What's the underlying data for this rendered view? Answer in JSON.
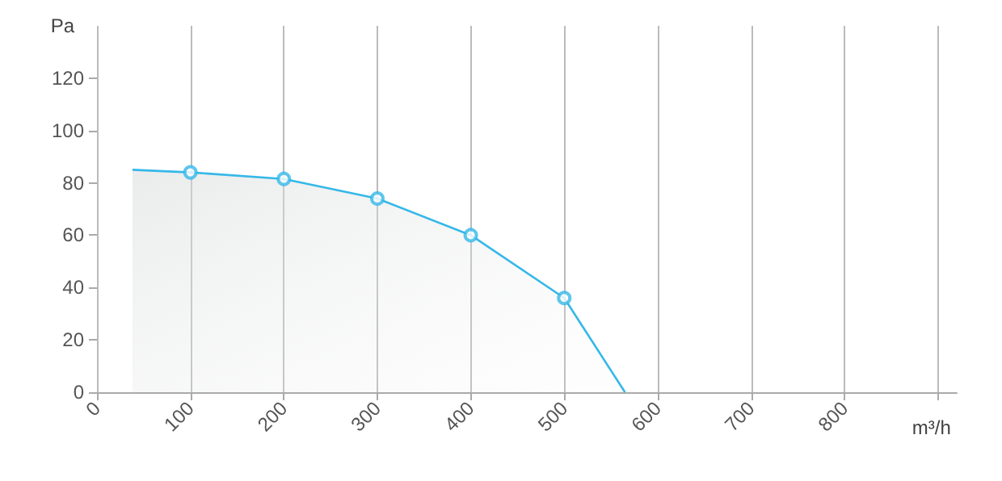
{
  "chart_data": {
    "type": "area",
    "xlabel": "m³/h",
    "ylabel": "Pa",
    "series": [
      {
        "color": "#35b8e8",
        "marker": "none",
        "x": [
          38,
          100,
          200,
          300,
          400,
          500,
          565
        ],
        "values": [
          85,
          84,
          81.5,
          74,
          60,
          36,
          0
        ]
      },
      {
        "type": "scatter",
        "color": "#35b8e8",
        "marker": "circle",
        "x": [
          100,
          200,
          300,
          400,
          500
        ],
        "values": [
          84,
          81.5,
          74,
          60,
          36
        ]
      }
    ],
    "xlim": [
      0,
      920
    ],
    "xticks": [
      0,
      100,
      200,
      300,
      400,
      500,
      600,
      700,
      800,
      {
        "value": 900,
        "label": null
      }
    ],
    "ylim": [
      0,
      140
    ],
    "yticks": [
      0,
      20,
      40,
      60,
      80,
      100,
      120
    ],
    "grid": "x"
  }
}
